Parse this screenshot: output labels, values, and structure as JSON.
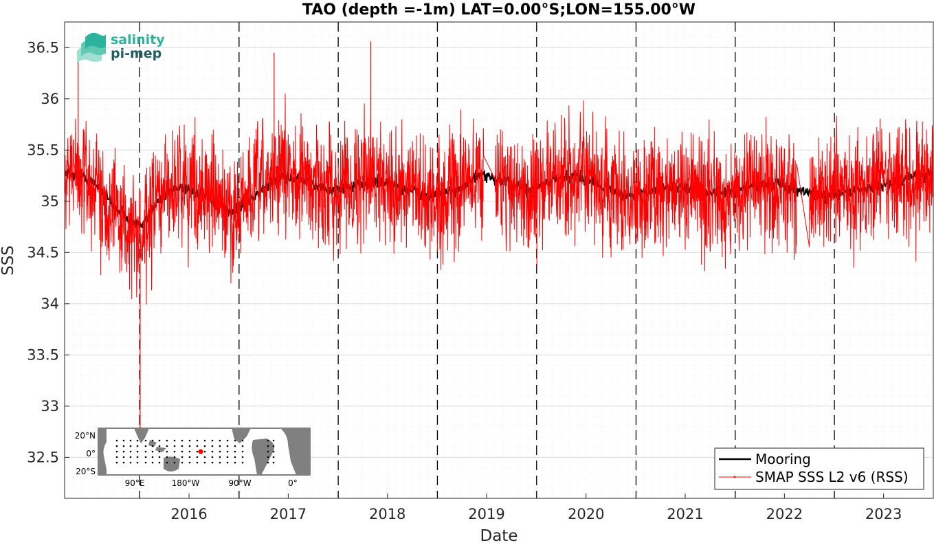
{
  "chart_data": {
    "type": "line",
    "title": "TAO (depth =-1m) LAT=0.00°S;LON=155.00°W",
    "xlabel": "Date",
    "ylabel": "SSS",
    "xlim": [
      "2015-03-31",
      "2023-12-31"
    ],
    "ylim": [
      32.1,
      36.75
    ],
    "x_ticks": [
      "2016",
      "2017",
      "2018",
      "2019",
      "2020",
      "2021",
      "2022",
      "2023"
    ],
    "y_ticks": [
      "32.5",
      "33",
      "33.5",
      "34",
      "34.5",
      "35",
      "35.5",
      "36",
      "36.5"
    ],
    "year_boundaries": [
      "2016-01-01",
      "2017-01-01",
      "2018-01-01",
      "2019-01-01",
      "2020-01-01",
      "2021-01-01",
      "2022-01-01",
      "2023-01-01"
    ],
    "grid": true,
    "legend_position": "bottom-right",
    "series": [
      {
        "name": "Mooring",
        "color": "#000000",
        "x": [
          "2015-04-01",
          "2015-06-01",
          "2015-08-01",
          "2015-10-01",
          "2015-12-01",
          "2016-01-15",
          "2016-03-01",
          "2016-06-01",
          "2016-09-01",
          "2016-12-01",
          "2017-03-01",
          "2017-06-01",
          "2017-09-01",
          "2017-12-01",
          "2018-03-01",
          "2018-06-01",
          "2018-09-01",
          "2018-12-01",
          "2019-03-01",
          "2019-06-01",
          "2019-09-01",
          "2019-12-01",
          "2020-03-01",
          "2020-06-01",
          "2020-09-01",
          "2020-12-01",
          "2021-03-01",
          "2021-06-01",
          "2021-09-01",
          "2021-12-01",
          "2022-03-01",
          "2022-06-01",
          "2022-09-01",
          "2022-12-01",
          "2023-03-01",
          "2023-06-01",
          "2023-09-01",
          "2023-12-31"
        ],
        "y": [
          35.28,
          35.25,
          35.15,
          34.95,
          34.82,
          34.75,
          35.0,
          35.15,
          35.05,
          34.88,
          35.05,
          35.25,
          35.2,
          35.1,
          35.15,
          35.2,
          35.12,
          35.05,
          35.1,
          35.25,
          35.2,
          35.1,
          35.2,
          35.25,
          35.15,
          35.05,
          35.1,
          35.15,
          35.1,
          35.08,
          35.15,
          35.18,
          35.1,
          35.05,
          35.1,
          35.15,
          35.2,
          35.28
        ]
      },
      {
        "name": "SMAP SSS L2 v6 (RSS)",
        "color": "#ff0000",
        "x": [
          "2015-04-01",
          "2015-06-01",
          "2015-08-01",
          "2015-10-01",
          "2015-12-01",
          "2016-01-15",
          "2016-03-01",
          "2016-06-01",
          "2016-09-01",
          "2016-12-01",
          "2017-03-01",
          "2017-06-01",
          "2017-09-01",
          "2017-12-01",
          "2018-03-01",
          "2018-06-01",
          "2018-09-01",
          "2018-12-01",
          "2019-03-01",
          "2019-06-01",
          "2019-09-01",
          "2019-12-01",
          "2020-03-01",
          "2020-06-01",
          "2020-09-01",
          "2020-12-01",
          "2021-03-01",
          "2021-06-01",
          "2021-09-01",
          "2021-12-01",
          "2022-03-01",
          "2022-06-01",
          "2022-09-01",
          "2022-12-01",
          "2023-03-01",
          "2023-06-01",
          "2023-09-01",
          "2023-12-31"
        ],
        "y": [
          35.3,
          35.25,
          35.1,
          34.9,
          34.7,
          34.6,
          35.0,
          35.2,
          35.1,
          34.85,
          35.1,
          35.3,
          35.2,
          35.1,
          35.2,
          35.25,
          35.1,
          35.0,
          35.1,
          35.25,
          35.2,
          35.05,
          35.2,
          35.25,
          35.1,
          35.0,
          35.1,
          35.15,
          35.05,
          35.05,
          35.15,
          35.15,
          35.05,
          35.05,
          35.1,
          35.2,
          35.2,
          35.25
        ],
        "min_value": 32.75,
        "max_value": 36.56
      }
    ]
  },
  "inset_map": {
    "lat_labels": [
      "20°N",
      "0°",
      "20°S"
    ],
    "lon_labels": [
      "90°E",
      "180°W",
      "90°W",
      "0°"
    ]
  },
  "logo": {
    "line1": "salinity",
    "line2": "pi-mep"
  },
  "colors": {
    "logo_teal": "#2bb39b",
    "logo_dark": "#1d5e63",
    "land": "#808080"
  }
}
